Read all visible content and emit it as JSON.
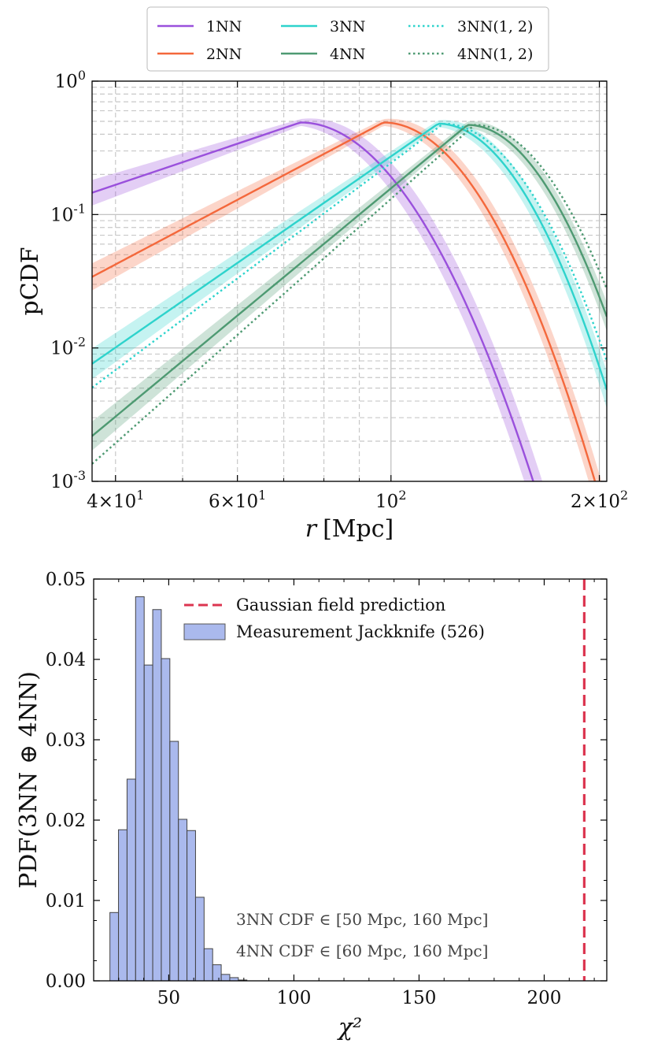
{
  "chart_data": [
    {
      "type": "line",
      "xscale": "log",
      "yscale": "log",
      "xlim": [
        37,
        205
      ],
      "ylim": [
        0.001,
        1
      ],
      "xlabel_var": "r",
      "xlabel_unit": "[Mpc]",
      "ylabel": "pCDF",
      "x_ticks": [
        {
          "value": 40,
          "base": "4×10",
          "exp": "1"
        },
        {
          "value": 60,
          "base": "6×10",
          "exp": "1"
        },
        {
          "value": 100,
          "base": "10",
          "exp": "2"
        },
        {
          "value": 200,
          "base": "2×10",
          "exp": "2"
        }
      ],
      "y_ticks": [
        {
          "value": 1,
          "base": "10",
          "exp": "0"
        },
        {
          "value": 0.1,
          "base": "10",
          "exp": "-1"
        },
        {
          "value": 0.01,
          "base": "10",
          "exp": "-2"
        },
        {
          "value": 0.001,
          "base": "10",
          "exp": "-3"
        }
      ],
      "grid": true,
      "legend_position": "top-center (above plot)",
      "series": [
        {
          "name": "1NN",
          "color": "#9a50dc",
          "style": "solid",
          "peak": 74,
          "sigma": 0.22,
          "left_slope": 1.75,
          "height": 0.49,
          "band": 0.45
        },
        {
          "name": "2NN",
          "color": "#f4683c",
          "style": "solid",
          "peak": 97.5,
          "sigma": 0.2,
          "left_slope": 2.75,
          "height": 0.49,
          "band": 0.35
        },
        {
          "name": "3NN",
          "color": "#2ed3cc",
          "style": "solid",
          "peak": 117,
          "sigma": 0.185,
          "left_slope": 3.6,
          "height": 0.48,
          "band": 0.35
        },
        {
          "name": "4NN",
          "color": "#4e9a72",
          "style": "solid",
          "peak": 129,
          "sigma": 0.18,
          "left_slope": 4.3,
          "height": 0.47,
          "band": 0.3
        },
        {
          "name": "3NN(1, 2)",
          "color": "#2ed3cc",
          "style": "dotted",
          "peak": 119,
          "sigma": 0.19,
          "left_slope": 3.9,
          "height": 0.48
        },
        {
          "name": "4NN(1, 2)",
          "color": "#4e9a72",
          "style": "dotted",
          "peak": 132,
          "sigma": 0.185,
          "left_slope": 4.6,
          "height": 0.47
        }
      ]
    },
    {
      "type": "bar",
      "subtype": "histogram",
      "xlim": [
        20,
        225
      ],
      "ylim": [
        0,
        0.05
      ],
      "xlabel": "χ²",
      "ylabel": "PDF(3NN ⊕ 4NN)",
      "x_ticks": [
        50,
        100,
        150,
        200
      ],
      "y_ticks": [
        {
          "value": 0,
          "label": "0.00"
        },
        {
          "value": 0.01,
          "label": "0.01"
        },
        {
          "value": 0.02,
          "label": "0.02"
        },
        {
          "value": 0.03,
          "label": "0.03"
        },
        {
          "value": 0.04,
          "label": "0.04"
        },
        {
          "value": 0.05,
          "label": "0.05"
        }
      ],
      "bin_start": 26.5,
      "bin_width": 3.42,
      "values": [
        0.0085,
        0.0188,
        0.0251,
        0.0478,
        0.0393,
        0.0462,
        0.0401,
        0.0298,
        0.0201,
        0.0187,
        0.0104,
        0.004,
        0.002,
        0.0008,
        0.0004,
        0.0001
      ],
      "bar_color": "#7d94e3",
      "gaussian_prediction": 216,
      "gaussian_color": "#dc3550",
      "legend": {
        "line": "Gaussian field prediction",
        "bars": "Measurement Jackknife (526)"
      },
      "notes": [
        "3NN CDF ∈ [50 Mpc, 160 Mpc]",
        "4NN CDF ∈ [60 Mpc, 160 Mpc]"
      ]
    }
  ]
}
